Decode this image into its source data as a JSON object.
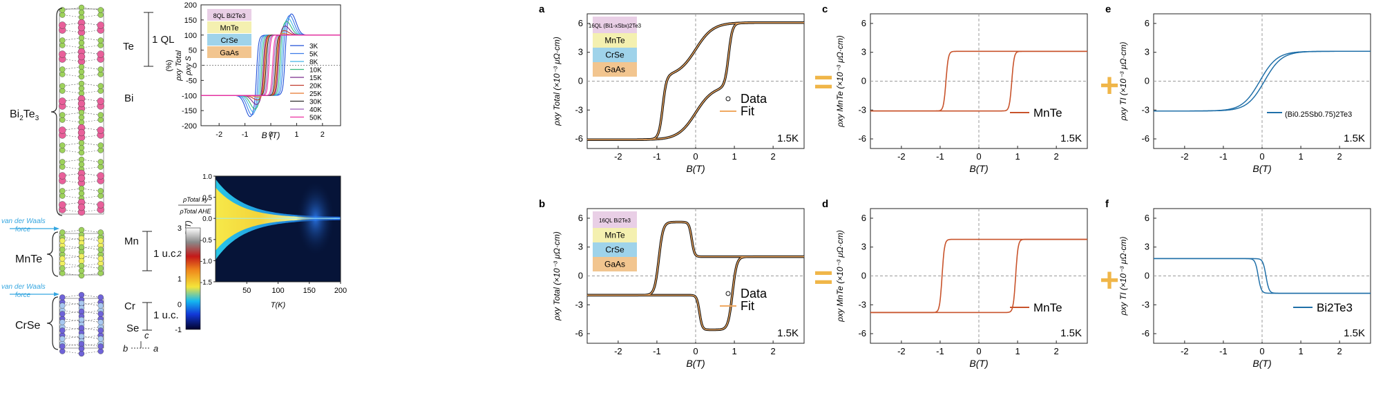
{
  "structure": {
    "labels": {
      "te": "Te",
      "bi": "Bi",
      "ql": "1 QL",
      "bi2te3": "Bi2Te3",
      "mn": "Mn",
      "uc1": "1 u.c.",
      "mnte": "MnTe",
      "cr": "Cr",
      "uc2": "1 u.c.",
      "crse": "CrSe",
      "se": "Se",
      "vdw1": "van der Waals force",
      "vdw2": "van der Waals force",
      "axis_c": "c",
      "axis_b": "b",
      "axis_a": "a"
    },
    "colors": {
      "te": "#9ed25c",
      "bi": "#e8609a",
      "mn": "#f0f060",
      "cr": "#a8c8f0",
      "se": "#6f63d8",
      "vdw": "#35a6e0"
    }
  },
  "hysteresis_top": {
    "stack": [
      "8QL Bi2Te3",
      "MnTe",
      "CrSe",
      "GaAs"
    ],
    "ylabel_num": "ρxy Total",
    "ylabel_den": "ρxy S",
    "ylabel_unit": "(%)",
    "xlabel": "B (T)"
  },
  "heatmap": {
    "ylabel": "B(T)",
    "xlabel": "T(K)",
    "cbar_title_num": "ρTotal xy",
    "cbar_title_den": "ρTotal AHE",
    "cbar_ticks": [
      "3",
      "2",
      "1",
      "0",
      "-1"
    ]
  },
  "panels": {
    "a": {
      "letter": "a",
      "stack": [
        "16QL (Bi1-xSbx)2Te3",
        "MnTe",
        "CrSe",
        "GaAs"
      ],
      "ylabel": "ρxy Total (×10⁻³ μΩ·cm)",
      "xlabel": "B(T)",
      "legend": [
        "Data",
        "Fit"
      ],
      "temp": "1.5K"
    },
    "c": {
      "letter": "c",
      "ylabel": "ρxy MnTe (×10⁻³ μΩ·cm)",
      "xlabel": "B(T)",
      "legend": [
        "MnTe"
      ],
      "temp": "1.5K"
    },
    "e": {
      "letter": "e",
      "ylabel": "ρxy TI (×10⁻³ μΩ·cm)",
      "xlabel": "B(T)",
      "legend": [
        "(Bi0.25Sb0.75)2Te3"
      ],
      "temp": "1.5K"
    },
    "b": {
      "letter": "b",
      "stack": [
        "16QL Bi2Te3",
        "MnTe",
        "CrSe",
        "GaAs"
      ],
      "ylabel": "ρxy Total (×10⁻³ μΩ·cm)",
      "xlabel": "B(T)",
      "legend": [
        "Data",
        "Fit"
      ],
      "temp": "1.5K"
    },
    "d": {
      "letter": "d",
      "ylabel": "ρxy MnTe (×10⁻³ μΩ·cm)",
      "xlabel": "B(T)",
      "legend": [
        "MnTe"
      ],
      "temp": "1.5K"
    },
    "f": {
      "letter": "f",
      "ylabel": "ρxy TI (×10⁻³ μΩ·cm)",
      "xlabel": "B(T)",
      "legend": [
        "Bi2Te3"
      ],
      "temp": "1.5K"
    }
  },
  "operators": {
    "eq": "=",
    "plus": "+"
  },
  "stack_colors": [
    "#e9cfe6",
    "#f4f0b0",
    "#9fd3ea",
    "#f2c58f"
  ],
  "chart_data": [
    {
      "type": "line",
      "id": "hysteresis",
      "xlabel": "B (T)",
      "ylabel": "ρxy Total / ρxy S (%)",
      "xlim": [
        -2.7,
        2.7
      ],
      "ylim": [
        -200,
        200
      ],
      "xticks": [
        -2,
        -1,
        0,
        1,
        2
      ],
      "yticks": [
        -200,
        -150,
        -100,
        -50,
        0,
        50,
        100,
        150,
        200
      ],
      "series": [
        {
          "name": "3K",
          "color": "#1f4fd8",
          "hc": 0.55,
          "peak": 170
        },
        {
          "name": "5K",
          "color": "#3a7ae8",
          "hc": 0.48,
          "peak": 165
        },
        {
          "name": "8K",
          "color": "#42b4e6",
          "hc": 0.42,
          "peak": 155
        },
        {
          "name": "10K",
          "color": "#33b97a",
          "hc": 0.36,
          "peak": 145
        },
        {
          "name": "15K",
          "color": "#7a2a8a",
          "hc": 0.3,
          "peak": 130
        },
        {
          "name": "20K",
          "color": "#c0392b",
          "hc": 0.26,
          "peak": 115
        },
        {
          "name": "25K",
          "color": "#e5762a",
          "hc": 0.22,
          "peak": 105
        },
        {
          "name": "30K",
          "color": "#2b2b2b",
          "hc": 0.18,
          "peak": 100
        },
        {
          "name": "40K",
          "color": "#9b59b6",
          "hc": 0.12,
          "peak": 100
        },
        {
          "name": "50K",
          "color": "#ec2ea0",
          "hc": 0.07,
          "peak": 100
        }
      ]
    },
    {
      "type": "heatmap",
      "id": "temperature-map",
      "xlabel": "T(K)",
      "ylabel": "B(T)",
      "xlim": [
        0,
        200
      ],
      "ylim": [
        -1.5,
        1.0
      ],
      "xticks": [
        50,
        100,
        150,
        200
      ],
      "yticks": [
        -1.5,
        -1.0,
        -0.5,
        0.0,
        0.5,
        1.0
      ],
      "colorbar": {
        "range": [
          -1,
          3
        ],
        "ticks": [
          -1,
          0,
          1,
          2,
          3
        ]
      }
    },
    {
      "type": "line",
      "id": "panel-a",
      "xlim": [
        -2.8,
        2.8
      ],
      "ylim": [
        -7,
        7
      ],
      "xticks": [
        -2,
        -1,
        0,
        1,
        2
      ],
      "yticks": [
        -6,
        -3,
        0,
        3,
        6
      ],
      "series": [
        {
          "name": "Data",
          "kind": "two-step",
          "sat": 6.2,
          "mid": 0.7,
          "hc1": 0.2,
          "hc2": 0.85
        },
        {
          "name": "Fit",
          "kind": "two-step",
          "sat": 6.2,
          "mid": 0.7,
          "hc1": 0.2,
          "hc2": 0.85
        }
      ]
    },
    {
      "type": "line",
      "id": "panel-c",
      "xlim": [
        -2.8,
        2.8
      ],
      "ylim": [
        -7,
        7
      ],
      "xticks": [
        -2,
        -1,
        0,
        1,
        2
      ],
      "yticks": [
        -6,
        -3,
        0,
        3,
        6
      ],
      "series": [
        {
          "name": "MnTe",
          "kind": "square",
          "sat": 3.1,
          "hc": 0.85
        }
      ]
    },
    {
      "type": "line",
      "id": "panel-e",
      "xlim": [
        -2.8,
        2.8
      ],
      "ylim": [
        -7,
        7
      ],
      "xticks": [
        -2,
        -1,
        0,
        1,
        2
      ],
      "yticks": [
        -6,
        -3,
        0,
        3,
        6
      ],
      "series": [
        {
          "name": "(Bi0.25Sb0.75)2Te3",
          "kind": "tanh",
          "sat": 3.1,
          "width": 0.45,
          "hc": 0.06
        }
      ]
    },
    {
      "type": "line",
      "id": "panel-b",
      "xlim": [
        -2.8,
        2.8
      ],
      "ylim": [
        -7,
        7
      ],
      "xticks": [
        -2,
        -1,
        0,
        1,
        2
      ],
      "yticks": [
        -6,
        -3,
        0,
        3,
        6
      ],
      "series": [
        {
          "name": "Data",
          "kind": "bump",
          "sat": 2.0,
          "peak": 5.7,
          "hc_ti": 0.1,
          "hc_mn": 0.95
        },
        {
          "name": "Fit",
          "kind": "bump",
          "sat": 2.0,
          "peak": 5.7,
          "hc_ti": 0.1,
          "hc_mn": 0.95
        }
      ]
    },
    {
      "type": "line",
      "id": "panel-d",
      "xlim": [
        -2.8,
        2.8
      ],
      "ylim": [
        -7,
        7
      ],
      "xticks": [
        -2,
        -1,
        0,
        1,
        2
      ],
      "yticks": [
        -6,
        -3,
        0,
        3,
        6
      ],
      "series": [
        {
          "name": "MnTe",
          "kind": "square",
          "sat": 3.8,
          "hc": 0.95
        }
      ]
    },
    {
      "type": "line",
      "id": "panel-f",
      "xlim": [
        -2.8,
        2.8
      ],
      "ylim": [
        -7,
        7
      ],
      "xticks": [
        -2,
        -1,
        0,
        1,
        2
      ],
      "yticks": [
        -6,
        -3,
        0,
        3,
        6
      ],
      "series": [
        {
          "name": "Bi2Te3",
          "kind": "neg-tanh",
          "sat": 1.8,
          "width": 0.08,
          "hc": 0.1
        }
      ]
    }
  ]
}
